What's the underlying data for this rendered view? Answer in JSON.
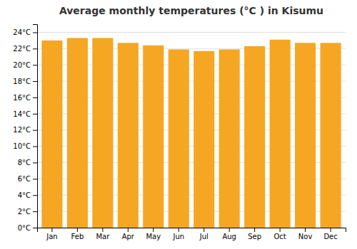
{
  "chart_data": {
    "type": "bar",
    "title": "Average monthly temperatures (°C ) in Kisumu",
    "categories": [
      "Jan",
      "Feb",
      "Mar",
      "Apr",
      "May",
      "Jun",
      "Jul",
      "Aug",
      "Sep",
      "Oct",
      "Nov",
      "Dec"
    ],
    "values": [
      23.0,
      23.3,
      23.3,
      22.7,
      22.4,
      21.9,
      21.7,
      21.9,
      22.3,
      23.1,
      22.7,
      22.7
    ],
    "color": "#F5A623",
    "ylim": [
      0,
      25
    ],
    "yticks": [
      {
        "value": 0,
        "label": "0°C"
      },
      {
        "value": 2,
        "label": "2°C"
      },
      {
        "value": 4,
        "label": "4°C"
      },
      {
        "value": 6,
        "label": "6°C"
      },
      {
        "value": 8,
        "label": "8°C"
      },
      {
        "value": 10,
        "label": "10°C"
      },
      {
        "value": 12,
        "label": "12°C"
      },
      {
        "value": 14,
        "label": "14°C"
      },
      {
        "value": 16,
        "label": "16°C"
      },
      {
        "value": 18,
        "label": "18°C"
      },
      {
        "value": 20,
        "label": "20°C"
      },
      {
        "value": 22,
        "label": "22°C"
      },
      {
        "value": 24,
        "label": "24°C"
      }
    ],
    "grid": true
  }
}
